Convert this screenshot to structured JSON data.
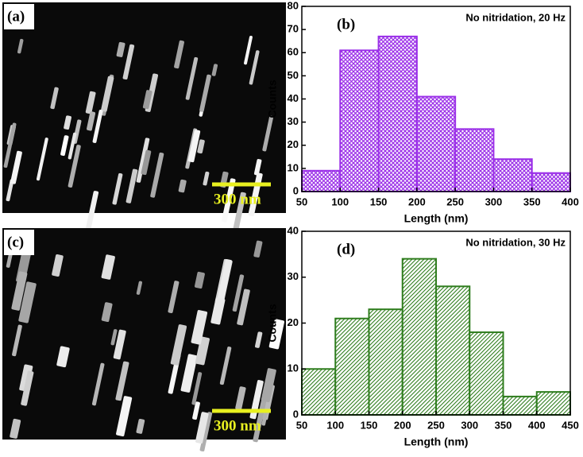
{
  "chart_data": [
    {
      "type": "histogram",
      "panel": "(b)",
      "annotation": "No nitridation, 20 Hz",
      "xlabel": "Length (nm)",
      "ylabel": "Counts",
      "bins": [
        50,
        100,
        150,
        200,
        250,
        300,
        350,
        400
      ],
      "values": [
        9,
        61,
        67,
        41,
        27,
        14,
        8
      ],
      "color": "#9b30e8",
      "hatch": "cross",
      "xlim": [
        50,
        400
      ],
      "xticks": [
        50,
        100,
        150,
        200,
        250,
        300,
        350,
        400
      ],
      "ylim": [
        0,
        80
      ],
      "yticks": [
        0,
        10,
        20,
        30,
        40,
        50,
        60,
        70,
        80
      ]
    },
    {
      "type": "histogram",
      "panel": "(d)",
      "annotation": "No nitridation, 30 Hz",
      "xlabel": "Length (nm)",
      "ylabel": "Counts",
      "bins": [
        50,
        100,
        150,
        200,
        250,
        300,
        350,
        400,
        450
      ],
      "values": [
        10,
        21,
        23,
        34,
        28,
        18,
        4,
        5
      ],
      "color": "#2f7d1e",
      "hatch": "diagonal",
      "xlim": [
        50,
        450
      ],
      "xticks": [
        50,
        100,
        150,
        200,
        250,
        300,
        350,
        400,
        450
      ],
      "ylim": [
        0,
        40
      ],
      "yticks": [
        0,
        10,
        20,
        30,
        40
      ]
    }
  ],
  "images": [
    {
      "label": "(a)",
      "scale_bar": "300 nm"
    },
    {
      "label": "(c)",
      "scale_bar": "300 nm"
    }
  ]
}
